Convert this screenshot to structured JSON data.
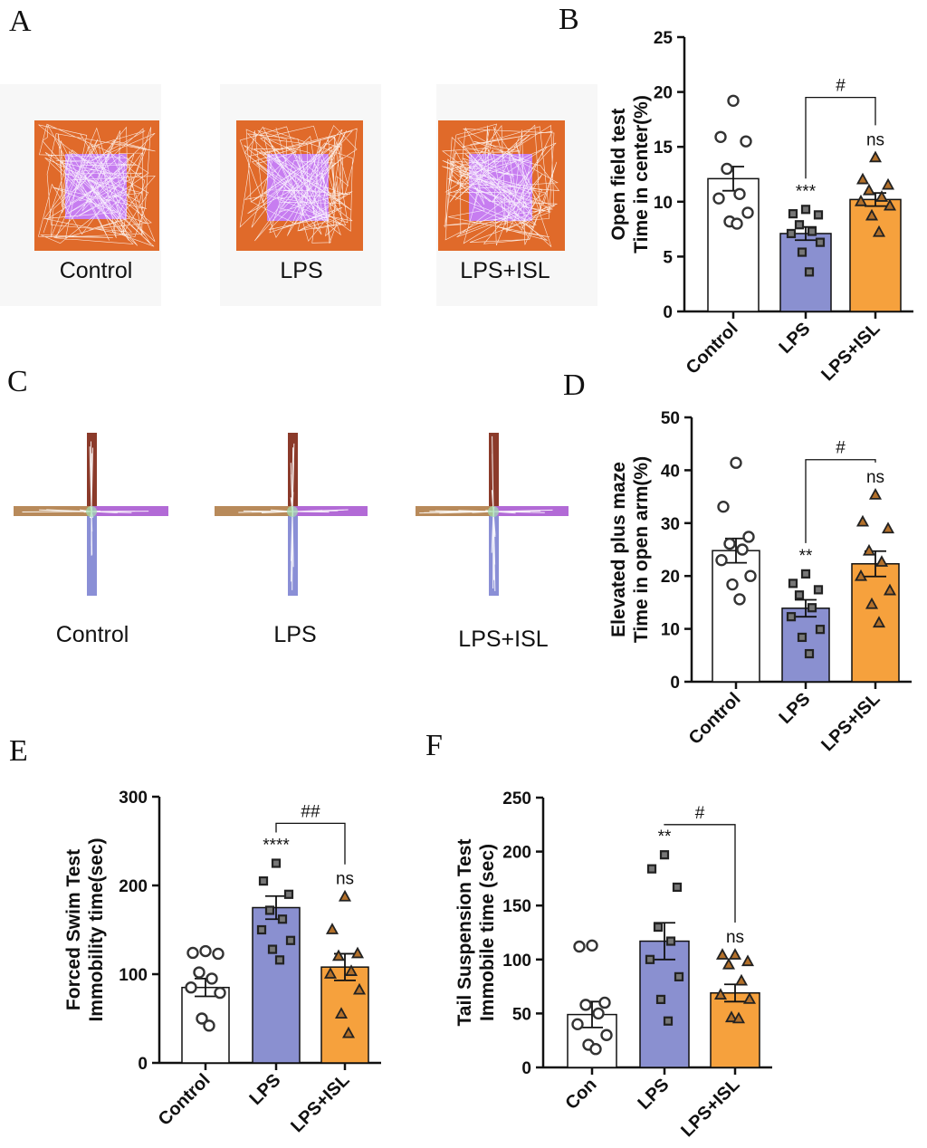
{
  "panels": {
    "A": {
      "letter": "A",
      "captions": [
        "Control",
        "LPS",
        "LPS+ISL"
      ],
      "colors": {
        "arena": "#e06a2a",
        "center": "#c77df0",
        "track": "#ffffff",
        "background": "#f7f7f7"
      }
    },
    "C": {
      "letter": "C",
      "captions": [
        "Control",
        "LPS",
        "LPS+ISL"
      ],
      "colors": {
        "north": "#8b3a2a",
        "south": "#8a8fd6",
        "west": "#b88a5a",
        "east": "#b26ad6",
        "track": "#ffffff"
      }
    }
  },
  "chart_data": [
    {
      "id": "B",
      "letter": "B",
      "type": "bar",
      "categories": [
        "Control",
        "LPS",
        "LPS+ISL"
      ],
      "values": [
        12.1,
        7.1,
        10.2
      ],
      "errors": [
        1.1,
        0.6,
        0.6
      ],
      "points": [
        [
          19.2,
          15.9,
          15.5,
          13.0,
          10.7,
          10.3,
          9.0,
          8.2,
          8.0
        ],
        [
          9.3,
          8.9,
          8.8,
          7.9,
          7.3,
          7.1,
          6.3,
          5.4,
          3.6
        ],
        [
          14.0,
          12.0,
          11.5,
          11.0,
          10.4,
          10.0,
          9.6,
          8.7,
          7.2
        ]
      ],
      "markers": [
        "circle",
        "square",
        "triangle"
      ],
      "fills": [
        "#ffffff",
        "#8a90d0",
        "#f6a13d"
      ],
      "ylabel_lines": [
        "Open field test",
        "Time in center(%)"
      ],
      "ylim": [
        0,
        25
      ],
      "yticks": [
        0,
        5,
        10,
        15,
        20,
        25
      ],
      "sig_labels": [
        "",
        "***",
        "ns"
      ],
      "bracket": {
        "from": 1,
        "to": 2,
        "label": "#",
        "y": 19.5
      }
    },
    {
      "id": "D",
      "letter": "D",
      "type": "bar",
      "categories": [
        "Control",
        "LPS",
        "LPS+ISL"
      ],
      "values": [
        24.8,
        13.9,
        22.3
      ],
      "errors": [
        2.3,
        1.6,
        2.4
      ],
      "points": [
        [
          41.4,
          33.1,
          27.4,
          26.1,
          25.0,
          23.0,
          20.0,
          18.4,
          15.6
        ],
        [
          20.4,
          18.6,
          17.4,
          16.4,
          14.0,
          12.3,
          9.9,
          8.4,
          5.3
        ],
        [
          35.3,
          30.2,
          28.9,
          24.7,
          22.6,
          19.9,
          17.2,
          14.6,
          11.1
        ]
      ],
      "markers": [
        "circle",
        "square",
        "triangle"
      ],
      "fills": [
        "#ffffff",
        "#8a90d0",
        "#f6a13d"
      ],
      "ylabel_lines": [
        "Elevated plus maze",
        "Time in open arm(%)"
      ],
      "ylim": [
        0,
        50
      ],
      "yticks": [
        0,
        10,
        20,
        30,
        40,
        50
      ],
      "sig_labels": [
        "",
        "**",
        "ns"
      ],
      "bracket": {
        "from": 1,
        "to": 2,
        "label": "#",
        "y": 42
      }
    },
    {
      "id": "E",
      "letter": "E",
      "type": "bar",
      "categories": [
        "Control",
        "LPS",
        "LPS+ISL"
      ],
      "values": [
        85,
        175,
        108
      ],
      "errors": [
        10,
        13,
        15
      ],
      "points": [
        [
          126,
          124,
          123,
          102,
          95,
          85,
          79,
          50,
          42
        ],
        [
          225,
          205,
          190,
          172,
          162,
          150,
          138,
          128,
          116
        ],
        [
          187,
          150,
          123,
          120,
          103,
          100,
          82,
          55,
          33
        ]
      ],
      "markers": [
        "circle",
        "square",
        "triangle"
      ],
      "fills": [
        "#ffffff",
        "#8a90d0",
        "#f6a13d"
      ],
      "ylabel_lines": [
        "Forced Swim Test",
        "Immobility time(sec)"
      ],
      "ylim": [
        0,
        300
      ],
      "yticks": [
        0,
        100,
        200,
        300
      ],
      "sig_labels": [
        "",
        "****",
        "ns"
      ],
      "bracket": {
        "from": 1,
        "to": 2,
        "label": "##",
        "y": 270
      }
    },
    {
      "id": "F",
      "letter": "F",
      "type": "bar",
      "categories": [
        "Con",
        "LPS",
        "LPS+ISL"
      ],
      "values": [
        49,
        117,
        69
      ],
      "errors": [
        12,
        17,
        8
      ],
      "points": [
        [
          113,
          112,
          60,
          58,
          50,
          40,
          30,
          21,
          17
        ],
        [
          197,
          184,
          167,
          130,
          117,
          100,
          84,
          63,
          43
        ],
        [
          104,
          104,
          98,
          95,
          80,
          67,
          63,
          46,
          45
        ]
      ],
      "markers": [
        "circle",
        "square",
        "triangle"
      ],
      "fills": [
        "#ffffff",
        "#8a90d0",
        "#f6a13d"
      ],
      "ylabel_lines": [
        "Tail Suspension Test",
        "Immobile time (sec)"
      ],
      "ylim": [
        0,
        250
      ],
      "yticks": [
        0,
        50,
        100,
        150,
        200,
        250
      ],
      "sig_labels": [
        "",
        "**",
        "ns"
      ],
      "bracket": {
        "from": 1,
        "to": 2,
        "label": "#",
        "y": 225
      }
    }
  ]
}
